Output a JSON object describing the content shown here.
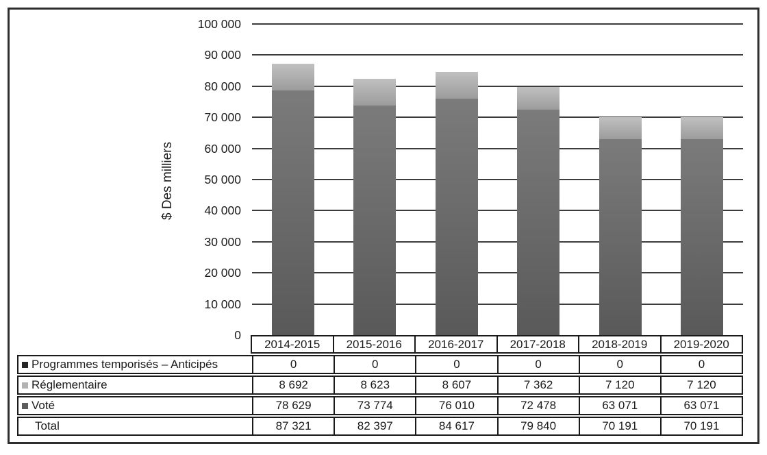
{
  "chart_data": {
    "type": "bar",
    "stacked": true,
    "ylabel": "$ Des milliers",
    "ylim": [
      0,
      100000
    ],
    "ytick_step": 10000,
    "ytick_labels": [
      "100 000",
      "90 000",
      "80 000",
      "70 000",
      "60 000",
      "50 000",
      "40 000",
      "30 000",
      "20 000",
      "10 000",
      "0"
    ],
    "grid": true,
    "legend_position": "table-left",
    "categories": [
      "2014-2015",
      "2015-2016",
      "2016-2017",
      "2017-2018",
      "2018-2019",
      "2019-2020"
    ],
    "series": [
      {
        "key": "programmes",
        "name": "Programmes temporisés – Anticipés",
        "values": [
          0,
          0,
          0,
          0,
          0,
          0
        ],
        "display": [
          "0",
          "0",
          "0",
          "0",
          "0",
          "0"
        ],
        "color": "#262626",
        "color_top": "#2e2e2e",
        "color_bottom": "#1f1f1f"
      },
      {
        "key": "reglementaire",
        "name": "Réglementaire",
        "values": [
          8692,
          8623,
          8607,
          7362,
          7120,
          7120
        ],
        "display": [
          "8 692",
          "8 623",
          "8 607",
          "7 362",
          "7 120",
          "7 120"
        ],
        "color": "#b3b3b3",
        "color_top": "#c0c0c0",
        "color_bottom": "#9c9c9c"
      },
      {
        "key": "vote",
        "name": "Voté",
        "values": [
          78629,
          73774,
          76010,
          72478,
          63071,
          63071
        ],
        "display": [
          "78 629",
          "73 774",
          "76 010",
          "72 478",
          "63 071",
          "63 071"
        ],
        "color": "#5c5c5c",
        "color_top": "#7b7b7b",
        "color_bottom": "#595959"
      }
    ],
    "total_row": {
      "label": "Total",
      "display": [
        "87 321",
        "82 397",
        "84 617",
        "79 840",
        "70 191",
        "70 191"
      ]
    }
  }
}
